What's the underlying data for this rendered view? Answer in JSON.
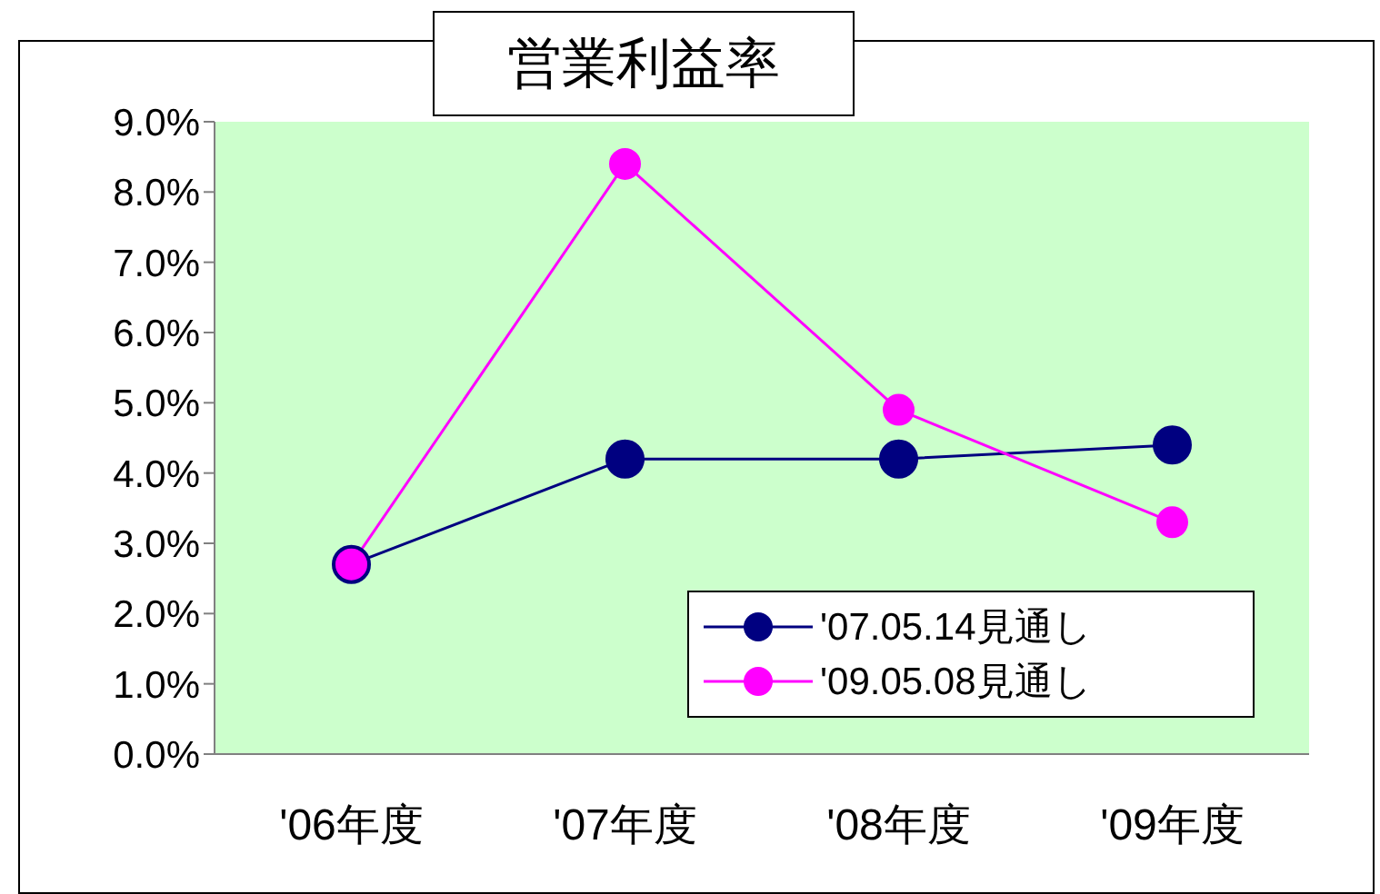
{
  "chart_data": {
    "type": "line",
    "title": "営業利益率",
    "categories": [
      "'06年度",
      "'07年度",
      "'08年度",
      "'09年度"
    ],
    "series": [
      {
        "name": "'07.05.14見通し",
        "color": "#000080",
        "values": [
          2.7,
          4.2,
          4.2,
          4.4
        ]
      },
      {
        "name": "'09.05.08見通し",
        "color": "#ff00ff",
        "values": [
          2.7,
          8.4,
          4.9,
          3.3
        ]
      }
    ],
    "ylim": [
      0,
      9
    ],
    "yticks": [
      {
        "value": 0,
        "label": "0.0%"
      },
      {
        "value": 1,
        "label": "1.0%"
      },
      {
        "value": 2,
        "label": "2.0%"
      },
      {
        "value": 3,
        "label": "3.0%"
      },
      {
        "value": 4,
        "label": "4.0%"
      },
      {
        "value": 5,
        "label": "5.0%"
      },
      {
        "value": 6,
        "label": "6.0%"
      },
      {
        "value": 7,
        "label": "7.0%"
      },
      {
        "value": 8,
        "label": "8.0%"
      },
      {
        "value": 9,
        "label": "9.0%"
      }
    ],
    "grid": false,
    "legend": "bottom right",
    "marker": "circle",
    "line_style": "solid"
  }
}
